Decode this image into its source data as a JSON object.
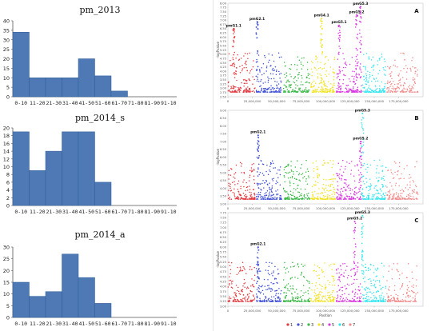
{
  "colors": {
    "hist_bar": "#4f79b5",
    "hist_edge": "#2f5d9a",
    "manhattan_series": [
      "#e4393f",
      "#3f4fd6",
      "#39b845",
      "#f2e220",
      "#d93ae0",
      "#33e5f0",
      "#f28a8a"
    ]
  },
  "chart_data": [
    {
      "type": "bar",
      "title": "pm_2013",
      "categories": [
        "0-10",
        "11-20",
        "21-30",
        "31-40",
        "41-50",
        "51-60",
        "61-70",
        "71-80",
        "81-90",
        "91-10"
      ],
      "values": [
        34,
        10,
        10,
        10,
        20,
        11,
        3,
        0,
        0,
        0
      ],
      "ylim": [
        0,
        40
      ],
      "yticks": [
        0,
        5,
        10,
        15,
        20,
        25,
        30,
        35,
        40
      ],
      "grid": false
    },
    {
      "type": "bar",
      "title": "pm_2014_s",
      "categories": [
        "0-10",
        "11-20",
        "21-30",
        "31-40",
        "41-50",
        "51-60",
        "61-70",
        "71-80",
        "81-90",
        "91-10"
      ],
      "values": [
        19,
        9,
        14,
        19,
        19,
        6,
        0,
        0,
        0,
        0
      ],
      "ylim": [
        0,
        20
      ],
      "yticks": [
        0,
        2,
        4,
        6,
        8,
        10,
        12,
        14,
        16,
        18,
        20
      ],
      "grid": false
    },
    {
      "type": "bar",
      "title": "pm_2014_a",
      "categories": [
        "0-10",
        "11-20",
        "21-30",
        "31-40",
        "41-50",
        "51-60",
        "61-70",
        "71-80",
        "81-90",
        "91-10"
      ],
      "values": [
        15,
        9,
        11,
        27,
        17,
        6,
        0,
        0,
        0,
        0
      ],
      "ylim": [
        0,
        30
      ],
      "yticks": [
        0,
        5,
        10,
        15,
        20,
        25,
        30
      ],
      "grid": false
    },
    {
      "type": "scatter",
      "panel_letter": "A",
      "ylabel": "-logPvalue",
      "ylim": [
        2.5,
        8.0
      ],
      "yticks": [
        2.5,
        2.75,
        3.0,
        3.25,
        3.5,
        3.75,
        4.0,
        4.25,
        4.5,
        4.75,
        5.0,
        5.25,
        5.5,
        5.75,
        6.0,
        6.25,
        6.5,
        6.75,
        7.0,
        7.25,
        7.5,
        7.75,
        8.0
      ],
      "xlim": [
        0,
        200000000
      ],
      "xticks": [
        0,
        25000000,
        50000000,
        75000000,
        100000000,
        125000000,
        150000000,
        175000000
      ],
      "xtick_labels": [
        "0",
        "25,000,000",
        "50,000,000",
        "75,000,000",
        "100,000,000",
        "125,000,000",
        "150,000,000",
        "175,000,000"
      ],
      "chromosome_ranges": [
        [
          0,
          28000000
        ],
        [
          29000000,
          55000000
        ],
        [
          57000000,
          84000000
        ],
        [
          85000000,
          110000000
        ],
        [
          111000000,
          137000000
        ],
        [
          138000000,
          162000000
        ],
        [
          163000000,
          195000000
        ]
      ],
      "peaks": [
        {
          "label": "pmG1.1",
          "x": 6000000,
          "y": 6.5
        },
        {
          "label": "pmG2.1",
          "x": 30000000,
          "y": 6.9
        },
        {
          "label": "pmG4.1",
          "x": 96000000,
          "y": 7.1
        },
        {
          "label": "pmG5.1",
          "x": 114000000,
          "y": 6.7
        },
        {
          "label": "pmG5.2",
          "x": 132000000,
          "y": 7.3
        },
        {
          "label": "pmG5.3",
          "x": 136000000,
          "y": 7.8
        }
      ]
    },
    {
      "type": "scatter",
      "panel_letter": "B",
      "ylabel": "-logPvalue",
      "ylim": [
        3.0,
        9.0
      ],
      "yticks": [
        3.0,
        3.5,
        4.0,
        4.5,
        5.0,
        5.5,
        6.0,
        6.5,
        7.0,
        7.5,
        8.0,
        8.5,
        9.0
      ],
      "xlim": [
        0,
        200000000
      ],
      "xticks": [
        0,
        25000000,
        50000000,
        75000000,
        100000000,
        125000000,
        150000000,
        175000000
      ],
      "xtick_labels": [
        "0",
        "25,000,000",
        "50,000,000",
        "75,000,000",
        "100,000,000",
        "125,000,000",
        "150,000,000",
        "175,000,000"
      ],
      "chromosome_ranges": [
        [
          0,
          28000000
        ],
        [
          29000000,
          55000000
        ],
        [
          57000000,
          84000000
        ],
        [
          85000000,
          110000000
        ],
        [
          111000000,
          137000000
        ],
        [
          138000000,
          162000000
        ],
        [
          163000000,
          195000000
        ]
      ],
      "peaks": [
        {
          "label": "pmG2.1",
          "x": 31000000,
          "y": 7.4
        },
        {
          "label": "pmG5.2",
          "x": 136000000,
          "y": 7.0
        },
        {
          "label": "pmG5.3",
          "x": 138000000,
          "y": 8.8
        }
      ]
    },
    {
      "type": "scatter",
      "panel_letter": "C",
      "ylabel": "-logPvalue",
      "xlabel": "Position",
      "ylim": [
        3.0,
        7.75
      ],
      "yticks": [
        3.0,
        3.25,
        3.5,
        3.75,
        4.0,
        4.25,
        4.5,
        4.75,
        5.0,
        5.25,
        5.5,
        5.75,
        6.0,
        6.25,
        6.5,
        6.75,
        7.0,
        7.25,
        7.5,
        7.75
      ],
      "xlim": [
        0,
        200000000
      ],
      "xticks": [
        0,
        25000000,
        50000000,
        75000000,
        100000000,
        125000000,
        150000000,
        175000000
      ],
      "xtick_labels": [
        "0",
        "25,000,000",
        "50,000,000",
        "75,000,000",
        "100,000,000",
        "125,000,000",
        "150,000,000",
        "175,000,000"
      ],
      "chromosome_ranges": [
        [
          0,
          28000000
        ],
        [
          29000000,
          55000000
        ],
        [
          57000000,
          84000000
        ],
        [
          85000000,
          110000000
        ],
        [
          111000000,
          137000000
        ],
        [
          138000000,
          162000000
        ],
        [
          163000000,
          195000000
        ]
      ],
      "peaks": [
        {
          "label": "pmG2.1",
          "x": 31000000,
          "y": 6.0
        },
        {
          "label": "pmG5.2",
          "x": 130000000,
          "y": 7.3
        },
        {
          "label": "pmG5.3",
          "x": 138000000,
          "y": 7.6
        }
      ]
    }
  ],
  "legend": {
    "placement": "bottom",
    "items": [
      "1",
      "2",
      "3",
      "4",
      "5",
      "6",
      "7"
    ]
  }
}
